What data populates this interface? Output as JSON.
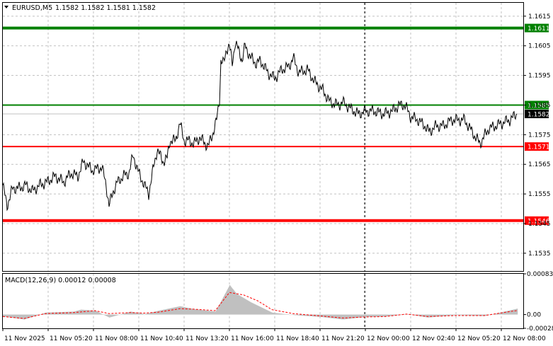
{
  "header": {
    "symbol": "EURUSD,M5",
    "quote": "1.1582 1.1582 1.1581 1.1582"
  },
  "macd": {
    "label": "MACD(12,26,9) 0.00012 0.00008",
    "yticks": [
      "0.00083",
      "0.00",
      "-0.00028"
    ],
    "ylim": [
      -0.00028,
      0.00083
    ]
  },
  "colors": {
    "price": "#000000",
    "grid": "#c0c0c0",
    "resistance": "#008000",
    "support": "#ff0000",
    "current": "#c0c0c0",
    "macd_hist": "#c0c0c0",
    "macd_signal": "#ff0000"
  },
  "chart_data": [
    {
      "type": "line",
      "title": "EURUSD,M5",
      "ylim": [
        1.1529,
        1.16195
      ],
      "yticks": [
        "1.1615",
        "1.1605",
        "1.1595",
        "1.1585",
        "1.1575",
        "1.1565",
        "1.1555",
        "1.1545",
        "1.1535"
      ],
      "x": [
        "11 Nov 2025",
        "11 Nov 05:20",
        "11 Nov 08:00",
        "11 Nov 10:40",
        "11 Nov 13:20",
        "11 Nov 16:00",
        "11 Nov 18:40",
        "11 Nov 21:20",
        "12 Nov 00:00",
        "12 Nov 02:40",
        "12 Nov 05:20",
        "12 Nov 08:00"
      ],
      "price_anchors": [
        [
          0,
          1.1558
        ],
        [
          6,
          1.1551
        ],
        [
          14,
          1.1557
        ],
        [
          24,
          1.1557
        ],
        [
          32,
          1.1558
        ],
        [
          42,
          1.1556
        ],
        [
          52,
          1.1558
        ],
        [
          62,
          1.1559
        ],
        [
          74,
          1.1561
        ],
        [
          86,
          1.1559
        ],
        [
          96,
          1.1562
        ],
        [
          106,
          1.1561
        ],
        [
          114,
          1.1566
        ],
        [
          126,
          1.1563
        ],
        [
          140,
          1.1564
        ],
        [
          146,
          1.1558
        ],
        [
          150,
          1.1551
        ],
        [
          156,
          1.1556
        ],
        [
          162,
          1.1559
        ],
        [
          170,
          1.1561
        ],
        [
          178,
          1.1562
        ],
        [
          184,
          1.1568
        ],
        [
          192,
          1.1562
        ],
        [
          200,
          1.1558
        ],
        [
          206,
          1.1555
        ],
        [
          212,
          1.1563
        ],
        [
          218,
          1.157
        ],
        [
          226,
          1.1566
        ],
        [
          232,
          1.1567
        ],
        [
          236,
          1.1573
        ],
        [
          244,
          1.1573
        ],
        [
          250,
          1.1579
        ],
        [
          256,
          1.1573
        ],
        [
          262,
          1.1573
        ],
        [
          270,
          1.1572
        ],
        [
          278,
          1.1574
        ],
        [
          290,
          1.1571
        ],
        [
          296,
          1.1575
        ],
        [
          302,
          1.158
        ],
        [
          306,
          1.1587
        ],
        [
          308,
          1.16
        ],
        [
          312,
          1.1599
        ],
        [
          316,
          1.1604
        ],
        [
          320,
          1.1605
        ],
        [
          324,
          1.1599
        ],
        [
          328,
          1.1606
        ],
        [
          334,
          1.1603
        ],
        [
          338,
          1.16
        ],
        [
          342,
          1.1605
        ],
        [
          350,
          1.1601
        ],
        [
          358,
          1.1599
        ],
        [
          364,
          1.16
        ],
        [
          374,
          1.1596
        ],
        [
          384,
          1.1594
        ],
        [
          394,
          1.1597
        ],
        [
          404,
          1.1598
        ],
        [
          410,
          1.1601
        ],
        [
          418,
          1.1596
        ],
        [
          430,
          1.1597
        ],
        [
          440,
          1.1593
        ],
        [
          452,
          1.159
        ],
        [
          462,
          1.1586
        ],
        [
          474,
          1.1585
        ],
        [
          480,
          1.1586
        ],
        [
          490,
          1.1584
        ],
        [
          502,
          1.1582
        ],
        [
          512,
          1.1583
        ],
        [
          524,
          1.1583
        ],
        [
          538,
          1.1582
        ],
        [
          550,
          1.1583
        ],
        [
          560,
          1.1585
        ],
        [
          568,
          1.1585
        ],
        [
          576,
          1.1581
        ],
        [
          586,
          1.158
        ],
        [
          596,
          1.1578
        ],
        [
          602,
          1.1576
        ],
        [
          612,
          1.1578
        ],
        [
          622,
          1.1578
        ],
        [
          634,
          1.158
        ],
        [
          644,
          1.158
        ],
        [
          652,
          1.158
        ],
        [
          660,
          1.1577
        ],
        [
          668,
          1.1574
        ],
        [
          674,
          1.1572
        ],
        [
          686,
          1.1577
        ],
        [
          696,
          1.1578
        ],
        [
          706,
          1.1579
        ],
        [
          716,
          1.158
        ],
        [
          726,
          1.1582
        ]
      ],
      "resistance_levels": [
        1.1611,
        1.1585
      ],
      "support_levels": [
        1.1571,
        1.1546
      ],
      "current_price": 1.1582,
      "level_labels": [
        "1.1611",
        "1.1585",
        "1.1571",
        "1.1546"
      ],
      "current_label": "1.1582"
    },
    {
      "type": "bar",
      "title": "MACD(12,26,9) 0.00012 0.00008",
      "ylim": [
        -0.00028,
        0.00083
      ],
      "histogram_anchors": [
        [
          0,
          -4e-05
        ],
        [
          30,
          -0.0001
        ],
        [
          60,
          4e-05
        ],
        [
          100,
          6e-05
        ],
        [
          110,
          0.0001
        ],
        [
          130,
          8e-05
        ],
        [
          150,
          -6e-05
        ],
        [
          180,
          6e-05
        ],
        [
          200,
          1e-05
        ],
        [
          220,
          8e-05
        ],
        [
          250,
          0.00017
        ],
        [
          270,
          0.00011
        ],
        [
          300,
          6e-05
        ],
        [
          320,
          0.0006
        ],
        [
          330,
          0.00042
        ],
        [
          350,
          0.00025
        ],
        [
          380,
          4e-05
        ],
        [
          410,
          -1e-05
        ],
        [
          450,
          -5e-05
        ],
        [
          480,
          -0.0001
        ],
        [
          510,
          -5e-05
        ],
        [
          540,
          -4e-05
        ],
        [
          570,
          1e-05
        ],
        [
          600,
          -6e-05
        ],
        [
          640,
          -1e-05
        ],
        [
          680,
          -3e-05
        ],
        [
          720,
          0.0001
        ],
        [
          726,
          0.00012
        ]
      ],
      "signal_anchors": [
        [
          0,
          -4e-05
        ],
        [
          30,
          -8e-05
        ],
        [
          60,
          2e-05
        ],
        [
          100,
          4e-05
        ],
        [
          130,
          8e-05
        ],
        [
          150,
          2e-05
        ],
        [
          180,
          4e-05
        ],
        [
          200,
          3e-05
        ],
        [
          220,
          5e-05
        ],
        [
          250,
          0.00012
        ],
        [
          270,
          0.00011
        ],
        [
          300,
          8e-05
        ],
        [
          320,
          0.00045
        ],
        [
          340,
          0.0004
        ],
        [
          360,
          0.00028
        ],
        [
          380,
          0.0001
        ],
        [
          410,
          2e-05
        ],
        [
          450,
          -3e-05
        ],
        [
          480,
          -7e-05
        ],
        [
          510,
          -5e-05
        ],
        [
          540,
          -4e-05
        ],
        [
          570,
          1e-05
        ],
        [
          600,
          -4e-05
        ],
        [
          640,
          -2e-05
        ],
        [
          680,
          -2e-05
        ],
        [
          720,
          7e-05
        ],
        [
          726,
          8e-05
        ]
      ]
    }
  ]
}
